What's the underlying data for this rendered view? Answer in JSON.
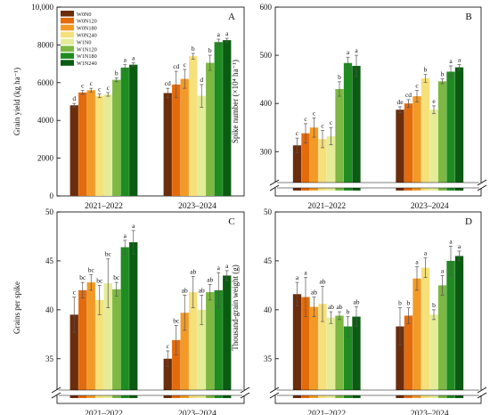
{
  "legend": {
    "entries": [
      "W0N0",
      "W0N120",
      "W0N180",
      "W0N240",
      "W1N0",
      "W1N120",
      "W1N180",
      "W1N240"
    ]
  },
  "colors": [
    "#6b2d0c",
    "#e36b0c",
    "#f39a26",
    "#f5e07a",
    "#e4ec97",
    "#7cb842",
    "#1f8c22",
    "#0b5c12"
  ],
  "chart_data": [
    {
      "type": "bar",
      "panel": "A",
      "categories": [
        "2021–2022",
        "2023–2024"
      ],
      "ylabel": "Grain yield (kg ha⁻¹)",
      "ylim": [
        0,
        10000
      ],
      "yticks": [
        0,
        2000,
        4000,
        6000,
        8000,
        10000
      ],
      "ytick_labels": [
        "0",
        "2000",
        "4000",
        "6000",
        "8000",
        "10,000"
      ],
      "axis_break": false,
      "legend_position": "top-left",
      "series": [
        {
          "name": "W0N0",
          "values": [
            4800,
            5450
          ],
          "errors": [
            100,
            250
          ],
          "letters": [
            "d",
            "cd"
          ]
        },
        {
          "name": "W0N120",
          "values": [
            5480,
            5900
          ],
          "errors": [
            100,
            700
          ],
          "letters": [
            "c",
            "cd"
          ]
        },
        {
          "name": "W0N180",
          "values": [
            5600,
            6200
          ],
          "errors": [
            100,
            500
          ],
          "letters": [
            "c",
            "c"
          ]
        },
        {
          "name": "W0N240",
          "values": [
            5300,
            7400
          ],
          "errors": [
            100,
            150
          ],
          "letters": [
            "c",
            "b"
          ]
        },
        {
          "name": "W1N0",
          "values": [
            5380,
            5300
          ],
          "errors": [
            100,
            600
          ],
          "letters": [
            "c",
            "d"
          ]
        },
        {
          "name": "W1N120",
          "values": [
            6150,
            7050
          ],
          "errors": [
            100,
            400
          ],
          "letters": [
            "b",
            "b"
          ]
        },
        {
          "name": "W1N180",
          "values": [
            6800,
            8150
          ],
          "errors": [
            150,
            150
          ],
          "letters": [
            "a",
            "a"
          ]
        },
        {
          "name": "W1N240",
          "values": [
            6950,
            8250
          ],
          "errors": [
            100,
            100
          ],
          "letters": [
            "a",
            "a"
          ]
        }
      ]
    },
    {
      "type": "bar",
      "panel": "B",
      "categories": [
        "2021–2022",
        "2023–2024"
      ],
      "ylabel": "Spike number (×10⁴ ha⁻¹)",
      "ylim": [
        240,
        600
      ],
      "yticks": [
        300,
        400,
        500,
        600
      ],
      "ytick_labels": [
        "300",
        "400",
        "500",
        "600"
      ],
      "axis_break": true,
      "series": [
        {
          "name": "W0N0",
          "values": [
            313,
            387
          ],
          "errors": [
            15,
            6
          ],
          "letters": [
            "c",
            "de"
          ]
        },
        {
          "name": "W0N120",
          "values": [
            338,
            400
          ],
          "errors": [
            20,
            8
          ],
          "letters": [
            "c",
            "cd"
          ]
        },
        {
          "name": "W0N180",
          "values": [
            350,
            415
          ],
          "errors": [
            20,
            12
          ],
          "letters": [
            "c",
            "c"
          ]
        },
        {
          "name": "W0N240",
          "values": [
            326,
            452
          ],
          "errors": [
            18,
            8
          ],
          "letters": [
            "c",
            "b"
          ]
        },
        {
          "name": "W1N0",
          "values": [
            332,
            387
          ],
          "errors": [
            18,
            8
          ],
          "letters": [
            "c",
            "e"
          ]
        },
        {
          "name": "W1N120",
          "values": [
            430,
            446
          ],
          "errors": [
            15,
            5
          ],
          "letters": [
            "b",
            "b"
          ]
        },
        {
          "name": "W1N180",
          "values": [
            484,
            466
          ],
          "errors": [
            12,
            12
          ],
          "letters": [
            "a",
            "a"
          ]
        },
        {
          "name": "W1N240",
          "values": [
            478,
            475
          ],
          "errors": [
            22,
            6
          ],
          "letters": [
            "a",
            "a"
          ]
        }
      ]
    },
    {
      "type": "bar",
      "panel": "C",
      "categories": [
        "2021–2022",
        "2023–2024"
      ],
      "ylabel": "Grains per spike",
      "ylim": [
        30,
        50
      ],
      "yticks": [
        35,
        40,
        45,
        50
      ],
      "ytick_labels": [
        "35",
        "40",
        "45",
        "50"
      ],
      "axis_break": true,
      "series": [
        {
          "name": "W0N0",
          "values": [
            39.5,
            35.0
          ],
          "errors": [
            1.8,
            0.8
          ],
          "letters": [
            "c",
            "c"
          ]
        },
        {
          "name": "W0N120",
          "values": [
            42.0,
            36.9
          ],
          "errors": [
            0.8,
            1.5
          ],
          "letters": [
            "bc",
            "bc"
          ]
        },
        {
          "name": "W0N180",
          "values": [
            42.8,
            39.7
          ],
          "errors": [
            0.8,
            1.8
          ],
          "letters": [
            "bc",
            "ab"
          ]
        },
        {
          "name": "W0N240",
          "values": [
            41.0,
            41.8
          ],
          "errors": [
            1.5,
            1.6
          ],
          "letters": [
            "bc",
            "ab"
          ]
        },
        {
          "name": "W1N0",
          "values": [
            42.7,
            40.0
          ],
          "errors": [
            2.5,
            1.5
          ],
          "letters": [
            "bc",
            "ab"
          ]
        },
        {
          "name": "W1N120",
          "values": [
            42.1,
            41.8
          ],
          "errors": [
            0.7,
            0.8
          ],
          "letters": [
            "bc",
            "ab"
          ]
        },
        {
          "name": "W1N180",
          "values": [
            46.4,
            42.0
          ],
          "errors": [
            0.7,
            1.8
          ],
          "letters": [
            "a",
            "a"
          ]
        },
        {
          "name": "W1N240",
          "values": [
            46.9,
            43.5
          ],
          "errors": [
            1.2,
            0.5
          ],
          "letters": [
            "a",
            "a"
          ]
        }
      ]
    },
    {
      "type": "bar",
      "panel": "D",
      "categories": [
        "2021–2022",
        "2023–2024"
      ],
      "ylabel": "Thousand-grain weight (g)",
      "ylim": [
        30,
        50
      ],
      "yticks": [
        35,
        40,
        45,
        50
      ],
      "ytick_labels": [
        "35",
        "40",
        "45",
        "50"
      ],
      "axis_break": true,
      "series": [
        {
          "name": "W0N0",
          "values": [
            41.6,
            38.3
          ],
          "errors": [
            1.2,
            1.9
          ],
          "letters": [
            "a",
            "b"
          ]
        },
        {
          "name": "W0N120",
          "values": [
            41.3,
            39.4
          ],
          "errors": [
            2.0,
            0.8
          ],
          "letters": [
            "a",
            "b"
          ]
        },
        {
          "name": "W0N180",
          "values": [
            40.3,
            43.2
          ],
          "errors": [
            1.0,
            1.2
          ],
          "letters": [
            "ab",
            "a"
          ]
        },
        {
          "name": "W0N240",
          "values": [
            40.6,
            44.3
          ],
          "errors": [
            1.8,
            1.0
          ],
          "letters": [
            "ab",
            "a"
          ]
        },
        {
          "name": "W1N0",
          "values": [
            39.2,
            39.5
          ],
          "errors": [
            0.6,
            0.5
          ],
          "letters": [
            "ab",
            "b"
          ]
        },
        {
          "name": "W1N120",
          "values": [
            39.4,
            42.5
          ],
          "errors": [
            0.4,
            1.0
          ],
          "letters": [
            "ab",
            "a"
          ]
        },
        {
          "name": "W1N180",
          "values": [
            38.3,
            45.0
          ],
          "errors": [
            1.0,
            1.5
          ],
          "letters": [
            "b",
            "a"
          ]
        },
        {
          "name": "W1N240",
          "values": [
            39.3,
            45.5
          ],
          "errors": [
            1.0,
            0.5
          ],
          "letters": [
            "ab",
            "a"
          ]
        }
      ]
    }
  ]
}
